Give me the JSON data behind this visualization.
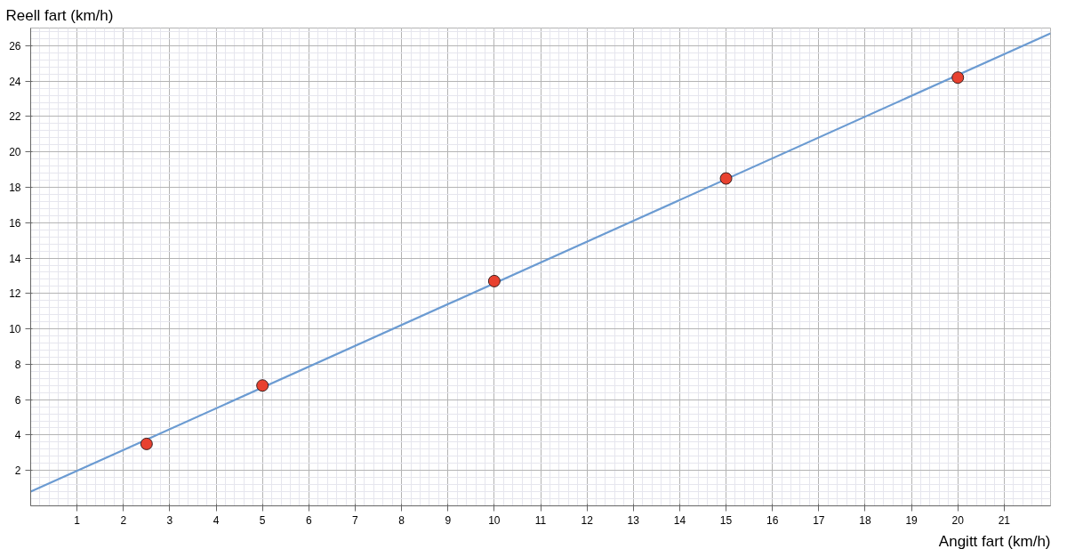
{
  "chart_data": {
    "type": "scatter",
    "xlabel": "Angitt fart (km/h)",
    "ylabel": "Reell fart (km/h)",
    "xlim": [
      0,
      22
    ],
    "ylim": [
      0,
      27
    ],
    "xticks": [
      1,
      2,
      3,
      4,
      5,
      6,
      7,
      8,
      9,
      10,
      11,
      12,
      13,
      14,
      15,
      16,
      17,
      18,
      19,
      20,
      21
    ],
    "yticks": [
      2,
      4,
      6,
      8,
      10,
      12,
      14,
      16,
      18,
      20,
      22,
      24,
      26
    ],
    "grid": true,
    "series": [
      {
        "color": "#e8412f",
        "marker": "circle",
        "x": [
          2.5,
          5,
          10,
          15,
          20
        ],
        "values": [
          3.5,
          6.8,
          12.7,
          18.5,
          24.2
        ]
      },
      {
        "type": "line",
        "color": "#6b9bd2",
        "x": [
          0,
          22
        ],
        "values": [
          0.8,
          26.7
        ]
      }
    ]
  }
}
